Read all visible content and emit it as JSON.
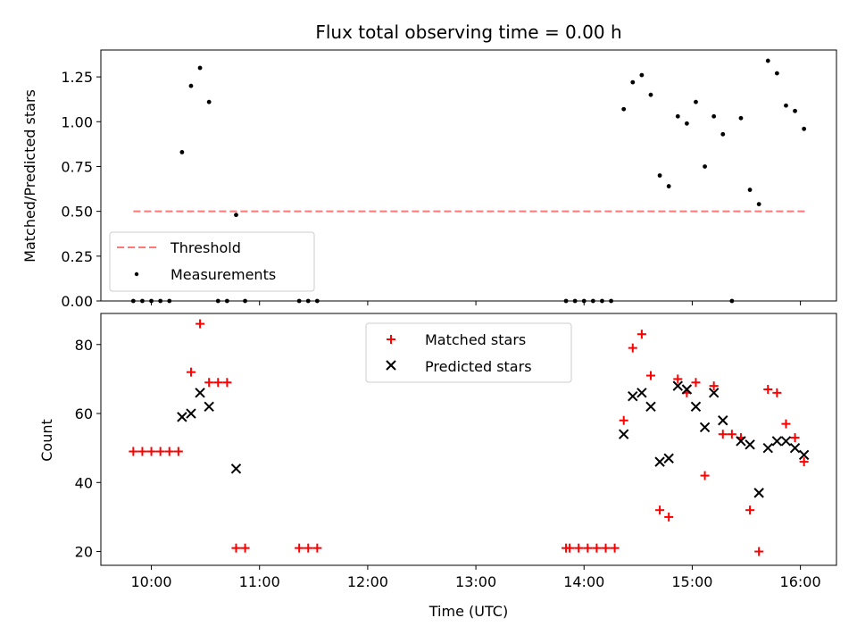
{
  "chart_data": [
    {
      "type": "scatter",
      "title": "Flux total observing time = 0.00 h",
      "ylabel": "Matched/Predicted stars",
      "xlabel": "",
      "ylim": [
        0,
        1.4
      ],
      "xlim": [
        "09:32",
        "16:20"
      ],
      "yticks": [
        "0.00",
        "0.25",
        "0.50",
        "0.75",
        "1.00",
        "1.25"
      ],
      "grid": false,
      "legend_position": "lower-left",
      "threshold": {
        "name": "Threshold",
        "value": 0.5,
        "x": [
          "09:50",
          "16:03"
        ],
        "color": "#ff7777"
      },
      "series": [
        {
          "name": "Measurements",
          "color": "#000000",
          "points": [
            [
              "09:50",
              0
            ],
            [
              "09:55",
              0
            ],
            [
              "10:00",
              0
            ],
            [
              "10:05",
              0
            ],
            [
              "10:10",
              0
            ],
            [
              "10:17",
              0.83
            ],
            [
              "10:22",
              1.2
            ],
            [
              "10:27",
              1.3
            ],
            [
              "10:32",
              1.11
            ],
            [
              "10:37",
              0
            ],
            [
              "10:42",
              0
            ],
            [
              "10:47",
              0.48
            ],
            [
              "10:52",
              0
            ],
            [
              "11:22",
              0
            ],
            [
              "11:27",
              0
            ],
            [
              "11:32",
              0
            ],
            [
              "13:50",
              0
            ],
            [
              "13:55",
              0
            ],
            [
              "14:00",
              0
            ],
            [
              "14:05",
              0
            ],
            [
              "14:10",
              0
            ],
            [
              "14:15",
              0
            ],
            [
              "14:22",
              1.07
            ],
            [
              "14:27",
              1.22
            ],
            [
              "14:32",
              1.26
            ],
            [
              "14:37",
              1.15
            ],
            [
              "14:42",
              0.7
            ],
            [
              "14:47",
              0.64
            ],
            [
              "14:52",
              1.03
            ],
            [
              "14:57",
              0.99
            ],
            [
              "15:02",
              1.11
            ],
            [
              "15:07",
              0.75
            ],
            [
              "15:12",
              1.03
            ],
            [
              "15:17",
              0.93
            ],
            [
              "15:22",
              0
            ],
            [
              "15:27",
              1.02
            ],
            [
              "15:32",
              0.62
            ],
            [
              "15:37",
              0.54
            ],
            [
              "15:42",
              1.34
            ],
            [
              "15:47",
              1.27
            ],
            [
              "15:52",
              1.09
            ],
            [
              "15:57",
              1.06
            ],
            [
              "16:02",
              0.96
            ]
          ]
        }
      ]
    },
    {
      "type": "scatter",
      "title": "",
      "ylabel": "Count",
      "xlabel": "Time (UTC)",
      "ylim": [
        16,
        89
      ],
      "xlim": [
        "09:32",
        "16:20"
      ],
      "yticks": [
        "20",
        "40",
        "60",
        "80"
      ],
      "xticks": [
        "10:00",
        "11:00",
        "12:00",
        "13:00",
        "14:00",
        "15:00",
        "16:00"
      ],
      "grid": false,
      "legend_position": "upper-center",
      "series": [
        {
          "name": "Matched stars",
          "marker": "plus",
          "color": "#ff0000",
          "points": [
            [
              "09:50",
              49
            ],
            [
              "09:55",
              49
            ],
            [
              "10:00",
              49
            ],
            [
              "10:05",
              49
            ],
            [
              "10:10",
              49
            ],
            [
              "10:15",
              49
            ],
            [
              "10:22",
              72
            ],
            [
              "10:27",
              86
            ],
            [
              "10:32",
              69
            ],
            [
              "10:37",
              69
            ],
            [
              "10:42",
              69
            ],
            [
              "10:47",
              21
            ],
            [
              "10:52",
              21
            ],
            [
              "11:22",
              21
            ],
            [
              "11:27",
              21
            ],
            [
              "11:32",
              21
            ],
            [
              "13:50",
              21
            ],
            [
              "13:52",
              21
            ],
            [
              "13:57",
              21
            ],
            [
              "14:02",
              21
            ],
            [
              "14:07",
              21
            ],
            [
              "14:12",
              21
            ],
            [
              "14:17",
              21
            ],
            [
              "14:22",
              58
            ],
            [
              "14:27",
              79
            ],
            [
              "14:32",
              83
            ],
            [
              "14:37",
              71
            ],
            [
              "14:42",
              32
            ],
            [
              "14:47",
              30
            ],
            [
              "14:52",
              70
            ],
            [
              "14:57",
              66
            ],
            [
              "15:02",
              69
            ],
            [
              "15:07",
              42
            ],
            [
              "15:12",
              68
            ],
            [
              "15:17",
              54
            ],
            [
              "15:22",
              54
            ],
            [
              "15:27",
              53
            ],
            [
              "15:32",
              32
            ],
            [
              "15:37",
              20
            ],
            [
              "15:42",
              67
            ],
            [
              "15:47",
              66
            ],
            [
              "15:52",
              57
            ],
            [
              "15:57",
              53
            ],
            [
              "16:02",
              46
            ]
          ]
        },
        {
          "name": "Predicted stars",
          "marker": "x",
          "color": "#000000",
          "points": [
            [
              "10:17",
              59
            ],
            [
              "10:22",
              60
            ],
            [
              "10:27",
              66
            ],
            [
              "10:32",
              62
            ],
            [
              "10:47",
              44
            ],
            [
              "14:22",
              54
            ],
            [
              "14:27",
              65
            ],
            [
              "14:32",
              66
            ],
            [
              "14:37",
              62
            ],
            [
              "14:42",
              46
            ],
            [
              "14:47",
              47
            ],
            [
              "14:52",
              68
            ],
            [
              "14:57",
              67
            ],
            [
              "15:02",
              62
            ],
            [
              "15:07",
              56
            ],
            [
              "15:12",
              66
            ],
            [
              "15:17",
              58
            ],
            [
              "15:27",
              52
            ],
            [
              "15:32",
              51
            ],
            [
              "15:37",
              37
            ],
            [
              "15:42",
              50
            ],
            [
              "15:47",
              52
            ],
            [
              "15:52",
              52
            ],
            [
              "15:57",
              50
            ],
            [
              "16:02",
              48
            ]
          ]
        }
      ]
    }
  ]
}
